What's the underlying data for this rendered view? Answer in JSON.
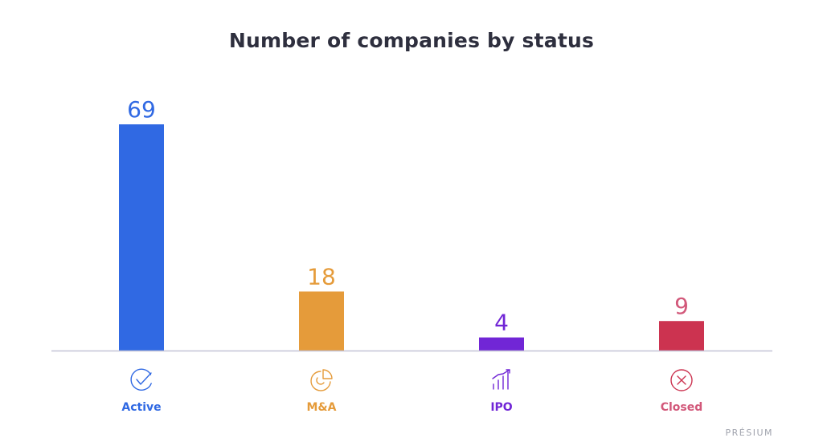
{
  "chart_data": {
    "type": "bar",
    "title": "Number of companies by status",
    "xlabel": "",
    "ylabel": "",
    "ylim": [
      0,
      69
    ],
    "grid": false,
    "categories": [
      "Active",
      "M&A",
      "IPO",
      "Closed"
    ],
    "values": [
      69,
      18,
      4,
      9
    ],
    "colors": [
      "#3069e3",
      "#e59b3a",
      "#7126d6",
      "#cc3350"
    ],
    "label_colors": [
      "#3069e3",
      "#e59b3a",
      "#7126d6",
      "#d2587a"
    ],
    "icons": [
      "check-circle-icon",
      "pie-chart-icon",
      "growth-chart-icon",
      "x-circle-icon"
    ]
  },
  "brand": "PRÉSIUM"
}
